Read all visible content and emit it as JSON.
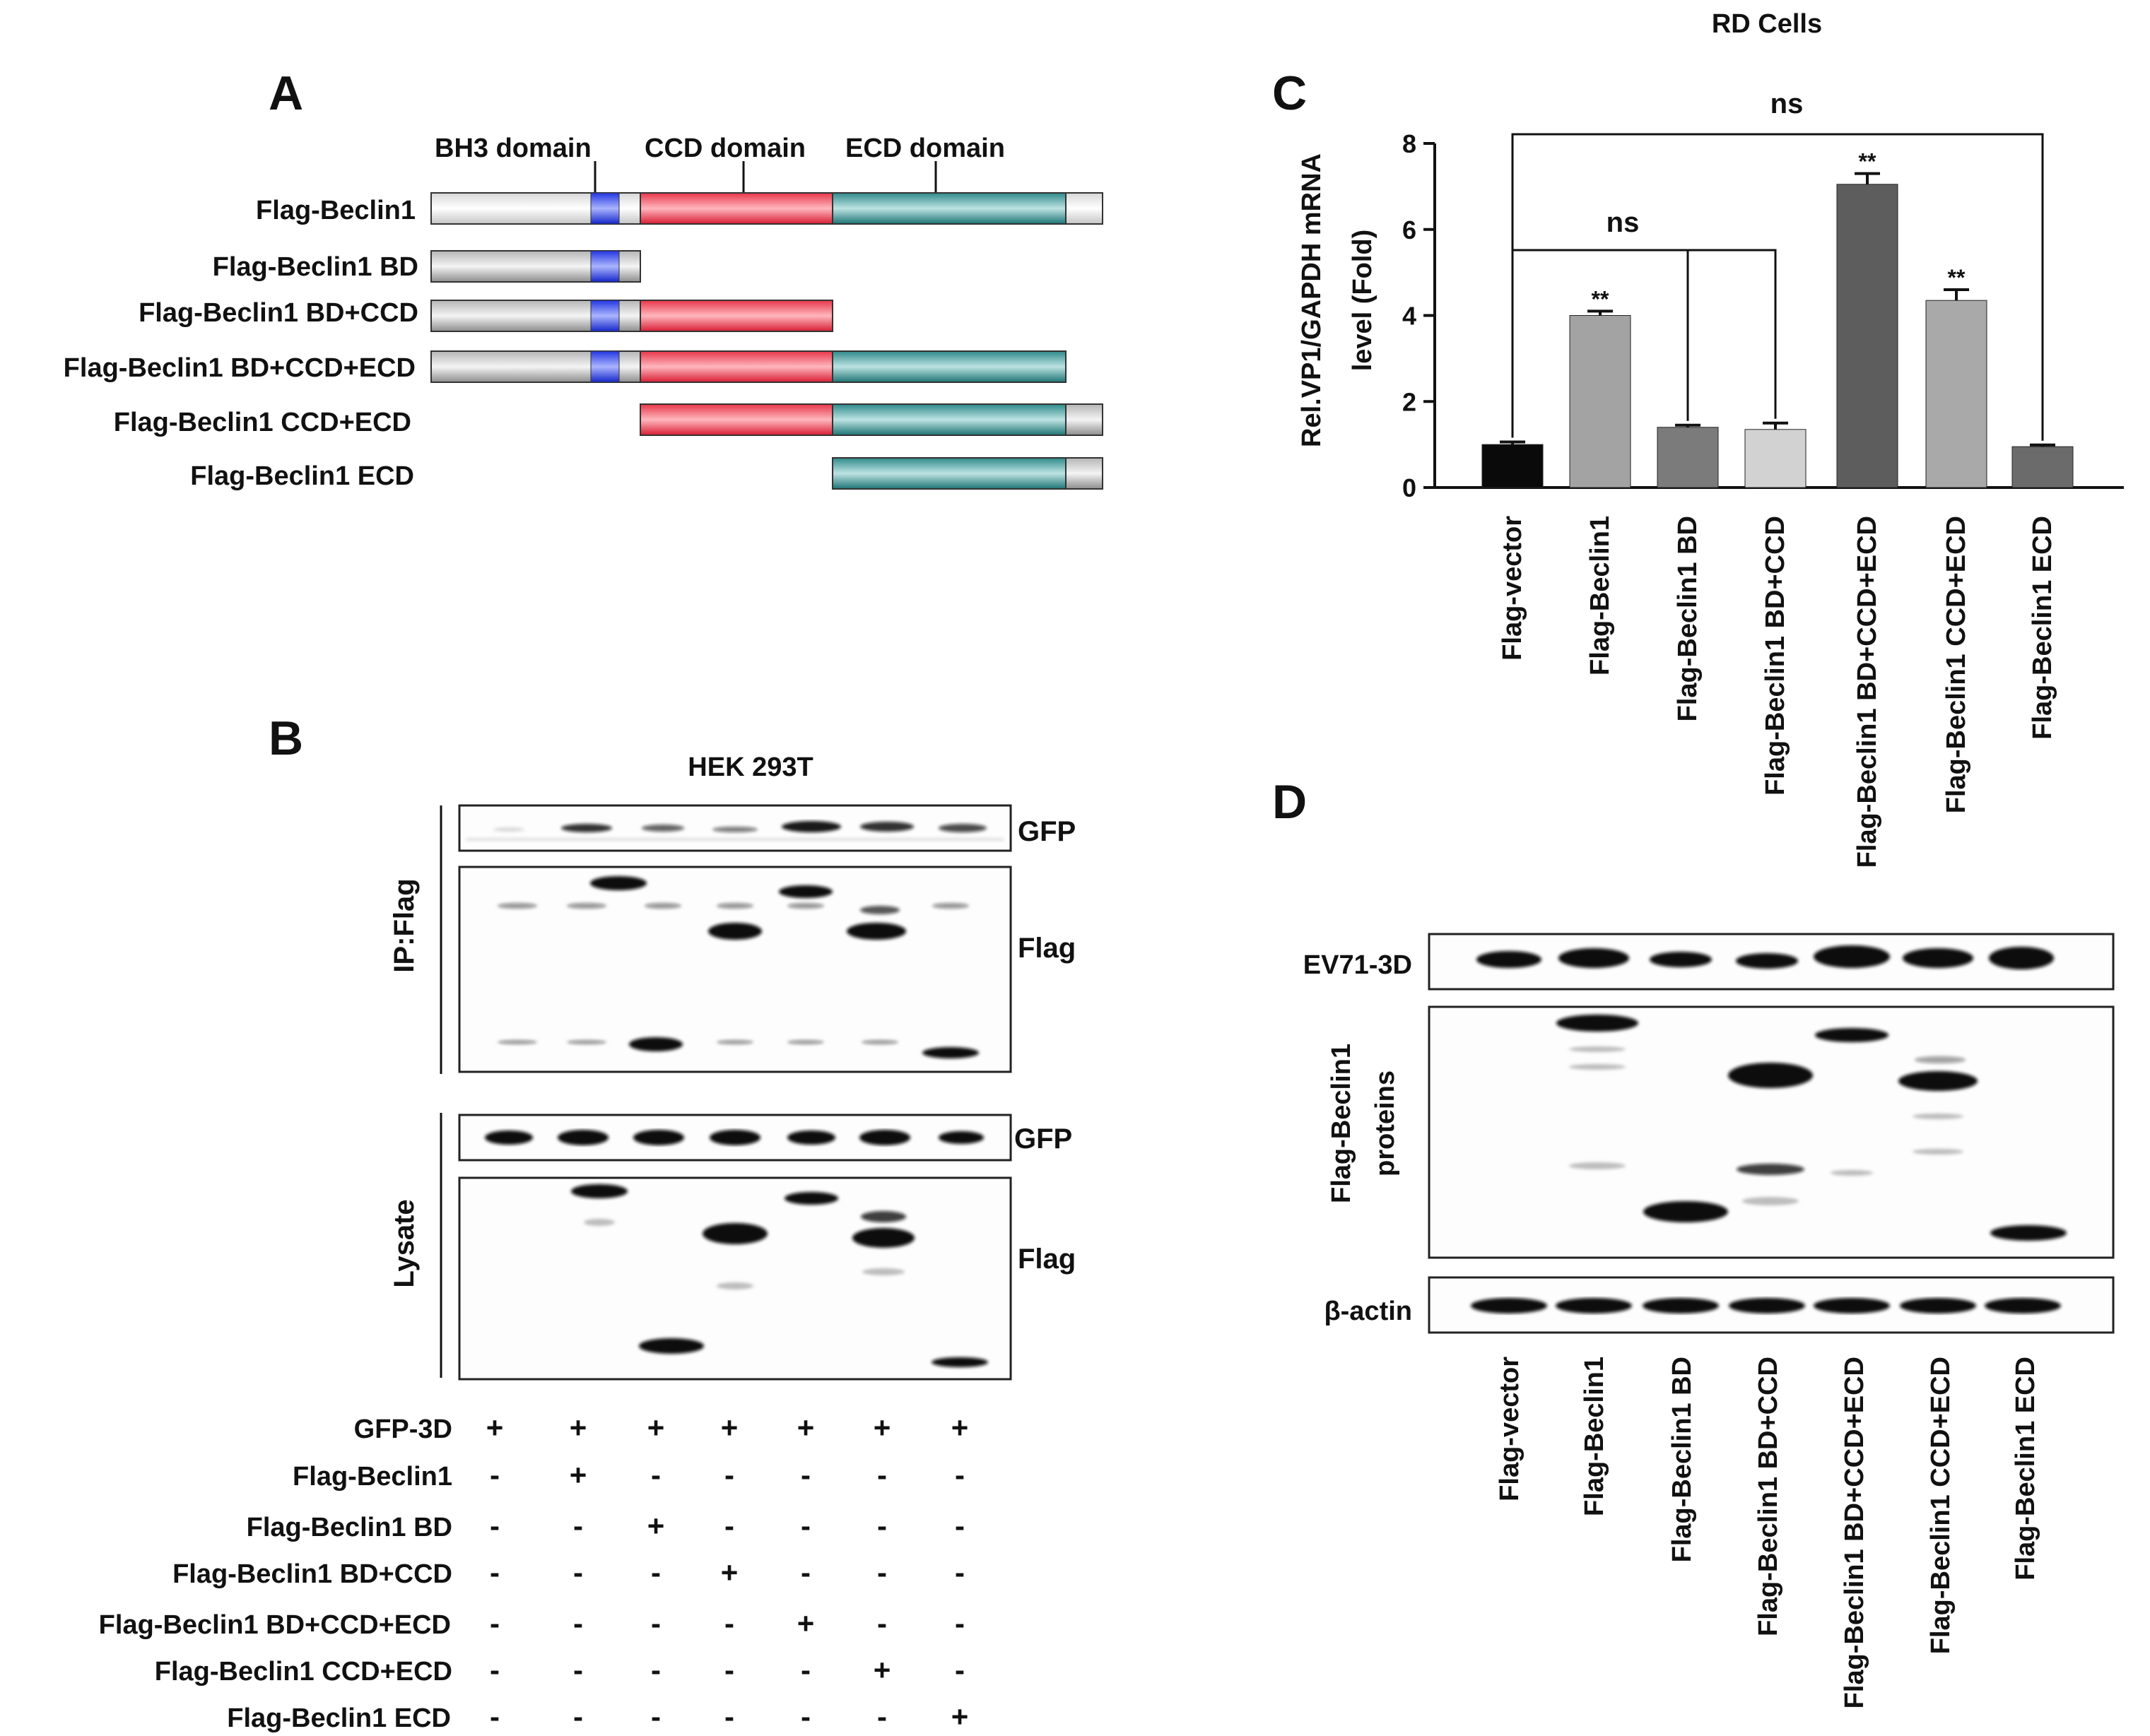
{
  "panel_a": {
    "letter": "A",
    "domain_labels": [
      "BH3 domain",
      "CCD domain",
      "ECD domain"
    ],
    "constructs": [
      "Flag-Beclin1",
      "Flag-Beclin1 BD",
      "Flag-Beclin1 BD+CCD",
      "Flag-Beclin1 BD+CCD+ECD",
      "Flag-Beclin1 CCD+ECD",
      "Flag-Beclin1 ECD"
    ]
  },
  "panel_b": {
    "letter": "B",
    "cell_line": "HEK 293T",
    "ip_label": "IP:Flag",
    "lysate_label": "Lysate",
    "gfp_label": "GFP",
    "flag_label": "Flag",
    "rows": [
      {
        "label": "GFP-3D",
        "signs": [
          "+",
          "+",
          "+",
          "+",
          "+",
          "+",
          "+"
        ]
      },
      {
        "label": "Flag-Beclin1",
        "signs": [
          "-",
          "+",
          "-",
          "-",
          "-",
          "-",
          "-"
        ]
      },
      {
        "label": "Flag-Beclin1 BD",
        "signs": [
          "-",
          "-",
          "+",
          "-",
          "-",
          "-",
          "-"
        ]
      },
      {
        "label": "Flag-Beclin1 BD+CCD",
        "signs": [
          "-",
          "-",
          "-",
          "+",
          "-",
          "-",
          "-"
        ]
      },
      {
        "label": "Flag-Beclin1 BD+CCD+ECD",
        "signs": [
          "-",
          "-",
          "-",
          "-",
          "+",
          "-",
          "-"
        ]
      },
      {
        "label": "Flag-Beclin1 CCD+ECD",
        "signs": [
          "-",
          "-",
          "-",
          "-",
          "-",
          "+",
          "-"
        ]
      },
      {
        "label": "Flag-Beclin1 ECD",
        "signs": [
          "-",
          "-",
          "-",
          "-",
          "-",
          "-",
          "+"
        ]
      }
    ]
  },
  "chart_data": {
    "type": "bar",
    "title": "RD Cells",
    "panel_letter": "C",
    "ylabel_line1": "Rel.VP1/GAPDH mRNA",
    "ylabel_line2": "level (Fold)",
    "ylim": [
      0,
      8
    ],
    "yticks": [
      "0",
      "2",
      "4",
      "6",
      "8"
    ],
    "categories": [
      "Flag-vector",
      "Flag-Beclin1",
      "Flag-Beclin1 BD",
      "Flag-Beclin1 BD+CCD",
      "Flag-Beclin1 BD+CCD+ECD",
      "Flag-Beclin1 CCD+ECD",
      "Flag-Beclin1 ECD"
    ],
    "values": [
      1.0,
      4.0,
      1.4,
      1.35,
      7.05,
      4.35,
      0.95
    ],
    "errors": [
      0.06,
      0.1,
      0.05,
      0.15,
      0.25,
      0.25,
      0.04
    ],
    "significance": [
      "",
      "**",
      "",
      "",
      "**",
      "**",
      ""
    ],
    "brackets": [
      {
        "label": "ns",
        "from": 0,
        "to": 6
      },
      {
        "label": "ns",
        "from": 0,
        "to": 3
      }
    ],
    "colors": [
      "#0a0a0a",
      "#a3a3a3",
      "#7b7b7b",
      "#d2d2d2",
      "#5d5d5d",
      "#a9a9a9",
      "#6b6b6b"
    ]
  },
  "panel_d": {
    "letter": "D",
    "ev71_label": "EV71-3D",
    "flag_label_line1": "Flag-Beclin1",
    "flag_label_line2": "proteins",
    "actin_label": "β-actin",
    "lanes": [
      "Flag-vector",
      "Flag-Beclin1",
      "Flag-Beclin1 BD",
      "Flag-Beclin1 BD+CCD",
      "Flag-Beclin1 BD+CCD+ECD",
      "Flag-Beclin1 CCD+ECD",
      "Flag-Beclin1 ECD"
    ]
  }
}
